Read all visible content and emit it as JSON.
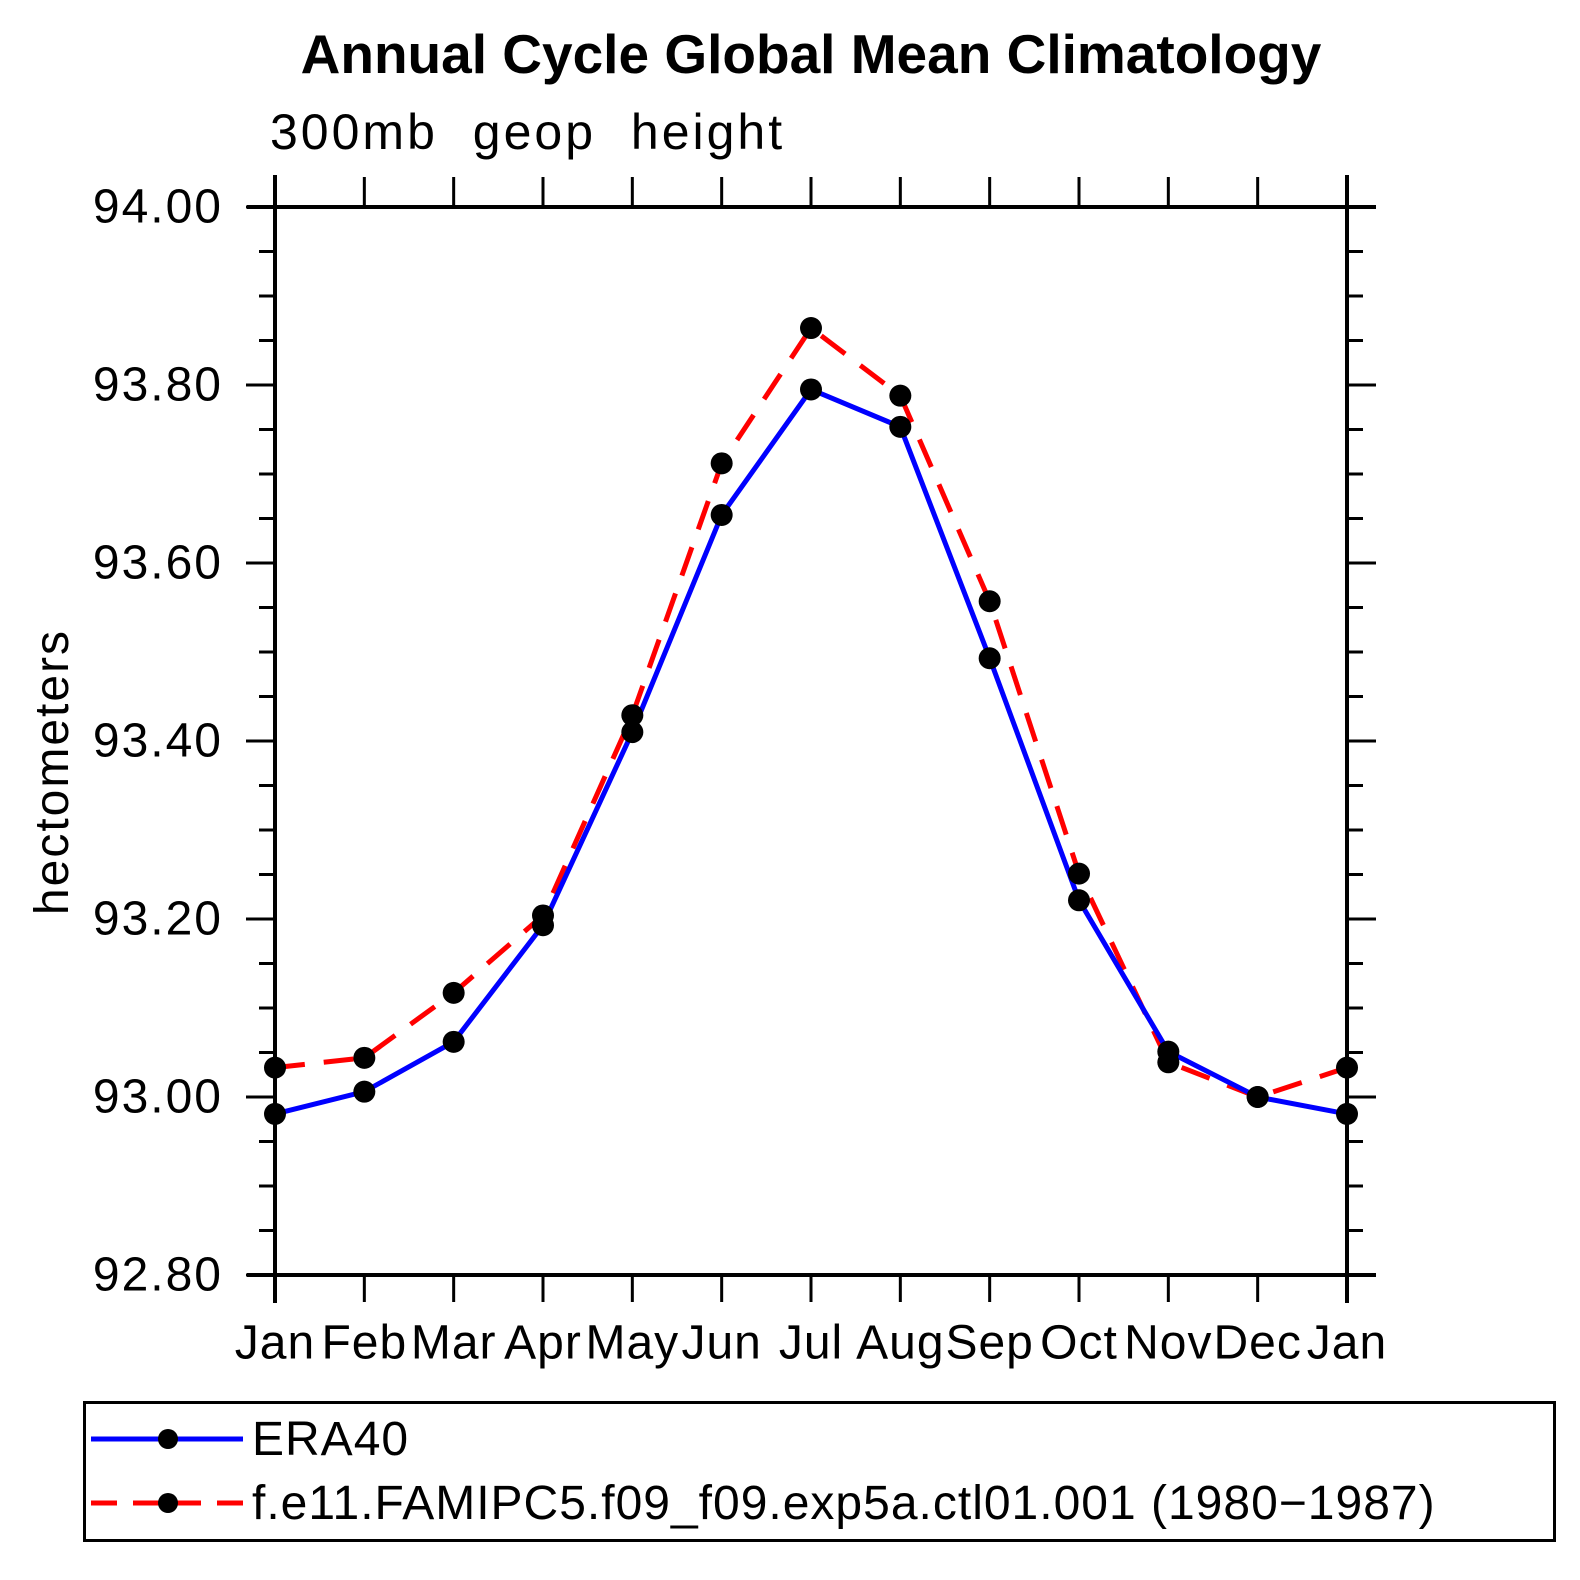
{
  "title": "Annual Cycle Global Mean Climatology",
  "subtitle": "300mb geop height",
  "chart_data": {
    "type": "line",
    "title": "Annual Cycle Global Mean Climatology",
    "subtitle": "300mb geop height",
    "xlabel": "",
    "ylabel": "hectometers",
    "categories": [
      "Jan",
      "Feb",
      "Mar",
      "Apr",
      "May",
      "Jun",
      "Jul",
      "Aug",
      "Sep",
      "Oct",
      "Nov",
      "Dec",
      "Jan"
    ],
    "series": [
      {
        "name": "ERA40",
        "color": "#0000ff",
        "line_style": "solid",
        "marker": "black-dot",
        "values": [
          92.981,
          93.006,
          93.062,
          93.193,
          93.41,
          93.654,
          93.795,
          93.753,
          93.493,
          93.221,
          93.051,
          93.0,
          92.981
        ]
      },
      {
        "name": "f.e11.FAMIPC5.f09_f09.exp5a.ctl01.001 (1980−1987)",
        "color": "#ff0000",
        "line_style": "dashed",
        "marker": "black-dot",
        "values": [
          93.033,
          93.044,
          93.117,
          93.204,
          93.429,
          93.712,
          93.864,
          93.788,
          93.557,
          93.251,
          93.039,
          93.0,
          93.033
        ]
      }
    ],
    "ylim": [
      92.8,
      94.0
    ],
    "ytick_step": 0.2,
    "yminor_step": 0.05,
    "ytick_format_decimals": 2,
    "grid": false,
    "legend_position": "bottom-left-box",
    "axis_color": "#000000",
    "marker_color": "#000000",
    "background_color": "#ffffff"
  },
  "legend": {
    "entries": [
      {
        "label": "ERA40"
      },
      {
        "label": "f.e11.FAMIPC5.f09_f09.exp5a.ctl01.001 (1980−1987)"
      }
    ]
  }
}
